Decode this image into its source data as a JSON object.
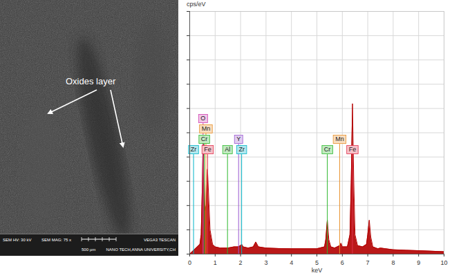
{
  "chart_data": {
    "type": "area",
    "y_label": "cps/eV",
    "x_label": "keV",
    "x": [
      0,
      0.1,
      0.2,
      0.3,
      0.4,
      0.45,
      0.5,
      0.525,
      0.55,
      0.6,
      0.65,
      0.7,
      0.72,
      0.8,
      0.9,
      1.0,
      1.2,
      1.5,
      1.75,
      1.9,
      2.0,
      2.05,
      2.1,
      2.3,
      2.5,
      2.6,
      2.7,
      3.0,
      3.5,
      4.0,
      4.5,
      5.0,
      5.3,
      5.35,
      5.41,
      5.47,
      5.55,
      5.7,
      5.9,
      5.95,
      6.0,
      6.2,
      6.3,
      6.35,
      6.4,
      6.45,
      6.5,
      6.6,
      6.8,
      6.95,
      7.0,
      7.06,
      7.12,
      7.2,
      7.4,
      7.5,
      8.0,
      8.5,
      9.0,
      9.5,
      10
    ],
    "values": [
      0,
      1,
      2,
      3,
      4,
      8,
      30,
      48,
      40,
      18,
      20,
      35,
      30,
      10,
      4,
      3,
      2.5,
      2.5,
      3,
      3,
      3.5,
      4,
      3,
      2.5,
      3,
      5,
      3,
      2.5,
      2.3,
      2.2,
      2.2,
      2.2,
      3,
      6,
      14,
      6,
      3,
      2.5,
      3.5,
      4.5,
      3,
      3,
      8,
      30,
      62,
      30,
      8,
      3.5,
      3,
      4,
      8,
      14,
      7,
      3,
      2.2,
      2.5,
      1.8,
      1.6,
      1.4,
      1.2,
      1
    ],
    "color": "#b30000",
    "xlim": [
      0,
      10
    ],
    "xticks": [
      0,
      1,
      2,
      3,
      4,
      5,
      6,
      7,
      8,
      9,
      10
    ],
    "ylim": [
      0,
      100
    ],
    "yticks": [
      0,
      10,
      20,
      30,
      40,
      50,
      60,
      70,
      80,
      90,
      100
    ],
    "grid": true,
    "tick_labels": "x",
    "markers": [
      {
        "label": "Zr",
        "x": 0.151,
        "color": "#00b4c8"
      },
      {
        "label": "Cr",
        "x": 0.573,
        "color": "#2db82d"
      },
      {
        "label": "Al",
        "x": 1.486,
        "color": "#2db82d"
      },
      {
        "label": "Zr",
        "x": 2.042,
        "color": "#00b4c8"
      },
      {
        "label": "Cr",
        "x": 5.411,
        "color": "#2db82d"
      },
      {
        "label": "Mn",
        "x": 5.894,
        "color": "#e8902a"
      },
      {
        "label": "Fe",
        "x": 6.398,
        "color": "#e0304a"
      },
      {
        "label": "Y",
        "x": 1.922,
        "color": "#9b59d0"
      },
      {
        "label": "Fe",
        "x": 0.705,
        "color": "#e0304a"
      },
      {
        "label": "Mn",
        "x": 0.637,
        "color": "#e8902a"
      },
      {
        "label": "O",
        "x": 0.525,
        "color": "#d040b0"
      }
    ]
  },
  "micrograph": {
    "annotation": "Oxides layer",
    "hv": "SEM HV: 30 kV",
    "mag": "SEM MAG: 75 x",
    "scale_bar": "500 µm",
    "instrument": "VEGA3 TESCAN",
    "lab": "NANO TECH,ANNA UNIVERSITY,CH"
  }
}
